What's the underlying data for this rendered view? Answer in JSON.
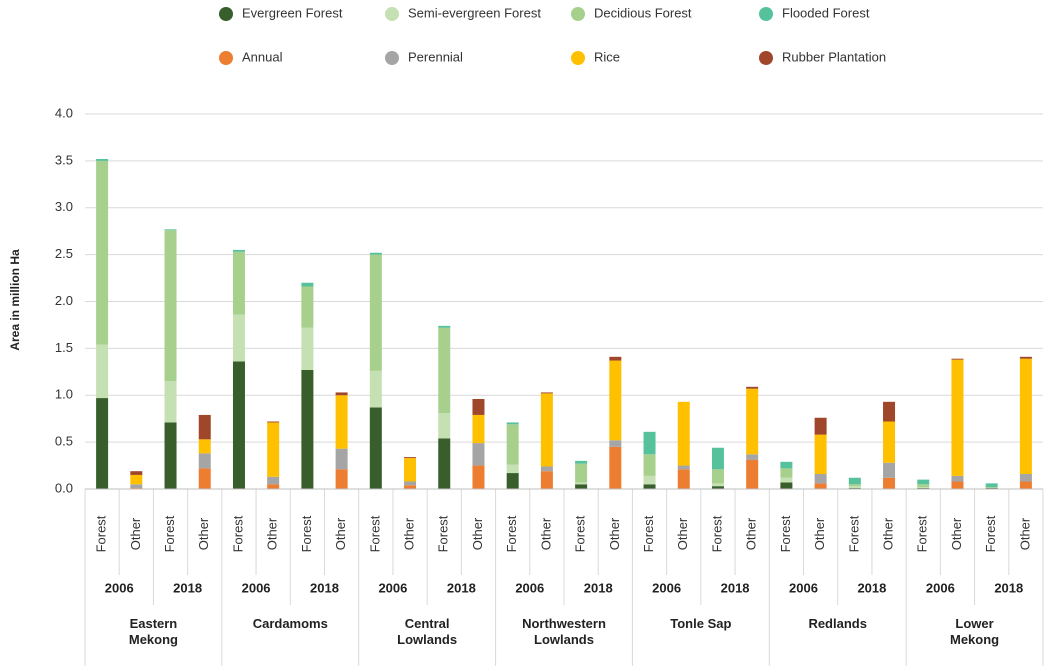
{
  "chart_data": {
    "type": "stacked_bar",
    "y_label": "Area in million Ha",
    "categories": [
      "Forest",
      "Other",
      "Forest",
      "Other",
      "Forest",
      "Other",
      "Forest",
      "Other",
      "Forest",
      "Other",
      "Forest",
      "Other",
      "Forest",
      "Other",
      "Forest",
      "Other",
      "Forest",
      "Other",
      "Forest",
      "Other",
      "Forest",
      "Other",
      "Forest",
      "Other",
      "Forest",
      "Other",
      "Forest",
      "Other"
    ],
    "years": [
      "2006",
      "2018",
      "2006",
      "2018",
      "2006",
      "2018",
      "2006",
      "2018",
      "2006",
      "2018",
      "2006",
      "2018",
      "2006",
      "2018"
    ],
    "regions": [
      "Eastern Mekong",
      "Cardamoms",
      "Central Lowlands",
      "Northwestern Lowlands",
      "Tonle Sap",
      "Redlands",
      "Lower Mekong"
    ],
    "ylim": [
      0,
      4.0
    ],
    "yticks": [
      {
        "value": 0,
        "label": "0.0"
      },
      0.5,
      {
        "value": 1,
        "label": "1.0"
      },
      1.5,
      {
        "value": 2,
        "label": "2.0"
      },
      2.5,
      {
        "value": 3,
        "label": "3.0"
      },
      3.5,
      {
        "value": 4,
        "label": "4.0"
      }
    ],
    "grid": true,
    "series": [
      {
        "name": "Evergreen Forest",
        "color": "#375e2b",
        "values": [
          0.97,
          0,
          0.71,
          0,
          1.36,
          0,
          1.27,
          0,
          0.87,
          0,
          0.54,
          0,
          0.17,
          0,
          0.05,
          0,
          0.05,
          0,
          0.03,
          0,
          0.07,
          0,
          0.01,
          0,
          0.01,
          0,
          0.01,
          0
        ]
      },
      {
        "name": "Semi-evergreen Forest",
        "color": "#c5e0b3",
        "values": [
          0.57,
          0,
          0.44,
          0,
          0.5,
          0,
          0.45,
          0,
          0.39,
          0,
          0.27,
          0,
          0.09,
          0,
          0.02,
          0,
          0.09,
          0,
          0.03,
          0,
          0.05,
          0,
          0.02,
          0,
          0.01,
          0,
          0,
          0
        ]
      },
      {
        "name": "Decidious Forest",
        "color": "#a8d08d",
        "values": [
          1.96,
          0,
          1.61,
          0,
          0.67,
          0,
          0.44,
          0,
          1.24,
          0,
          0.91,
          0,
          0.43,
          0,
          0.2,
          0,
          0.23,
          0,
          0.15,
          0,
          0.1,
          0,
          0.02,
          0,
          0.03,
          0,
          0.01,
          0
        ]
      },
      {
        "name": "Flooded Forest",
        "color": "#55c29c",
        "values": [
          0.02,
          0,
          0.01,
          0,
          0.02,
          0,
          0.04,
          0,
          0.02,
          0,
          0.02,
          0,
          0.02,
          0,
          0.03,
          0,
          0.24,
          0,
          0.23,
          0,
          0.07,
          0,
          0.07,
          0,
          0.05,
          0,
          0.04,
          0
        ]
      },
      {
        "name": "Annual",
        "color": "#ed7d31",
        "values": [
          0,
          0.01,
          0,
          0.22,
          0,
          0.05,
          0,
          0.21,
          0,
          0.04,
          0,
          0.25,
          0,
          0.19,
          0,
          0.45,
          0,
          0.21,
          0,
          0.31,
          0,
          0.06,
          0,
          0.12,
          0,
          0.08,
          0,
          0.08
        ]
      },
      {
        "name": "Perennial",
        "color": "#a5a5a5",
        "values": [
          0,
          0.04,
          0,
          0.16,
          0,
          0.08,
          0,
          0.22,
          0,
          0.04,
          0,
          0.24,
          0,
          0.05,
          0,
          0.07,
          0,
          0.04,
          0,
          0.06,
          0,
          0.1,
          0,
          0.16,
          0,
          0.06,
          0,
          0.08
        ]
      },
      {
        "name": "Rice",
        "color": "#ffc000",
        "values": [
          0,
          0.1,
          0,
          0.15,
          0,
          0.58,
          0,
          0.57,
          0,
          0.25,
          0,
          0.3,
          0,
          0.78,
          0,
          0.85,
          0,
          0.68,
          0,
          0.7,
          0,
          0.42,
          0,
          0.44,
          0,
          1.24,
          0,
          1.23
        ]
      },
      {
        "name": "Rubber Plantation",
        "color": "#a0462a",
        "values": [
          0,
          0.04,
          0,
          0.26,
          0,
          0.01,
          0,
          0.03,
          0,
          0.01,
          0,
          0.17,
          0,
          0.01,
          0,
          0.04,
          0,
          0,
          0,
          0.02,
          0,
          0.18,
          0,
          0.21,
          0,
          0.01,
          0,
          0.02
        ]
      }
    ]
  }
}
